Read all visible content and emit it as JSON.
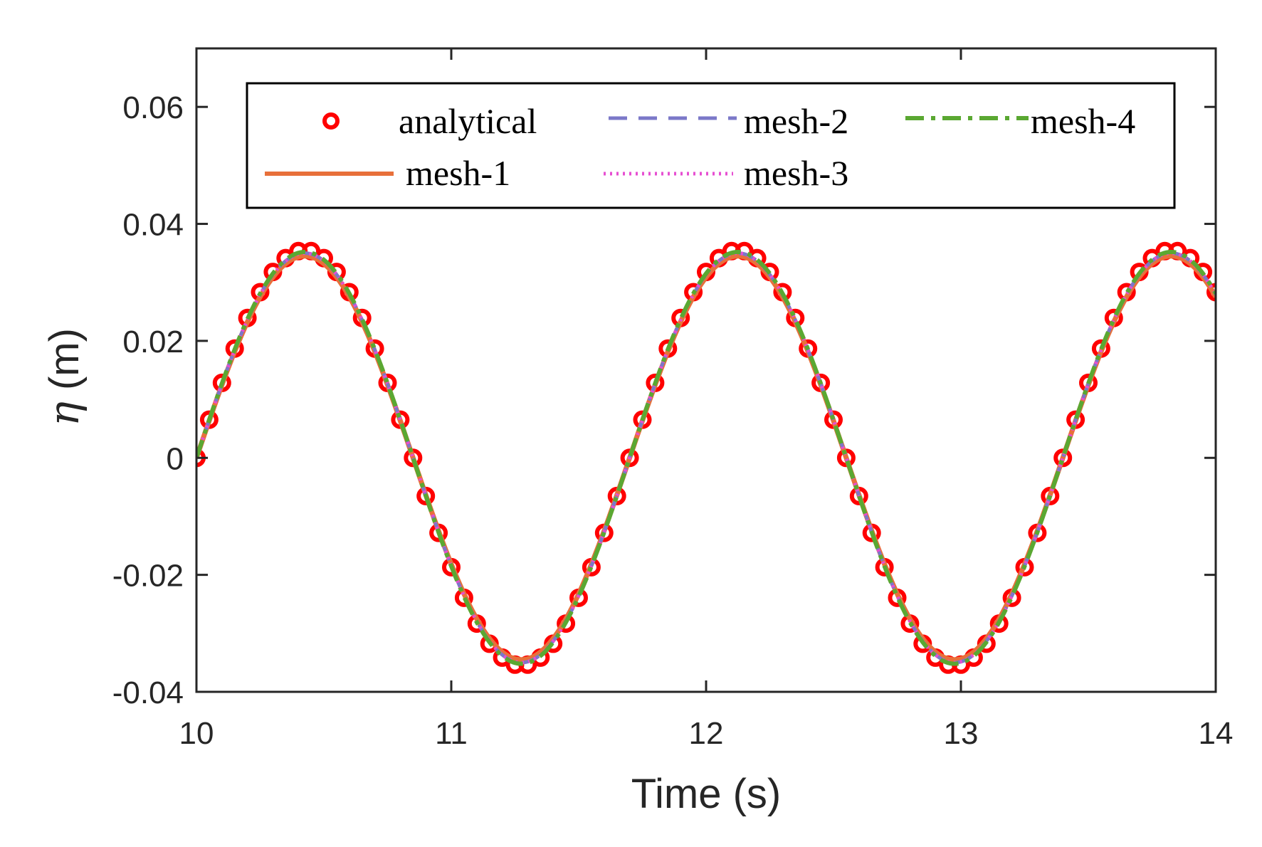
{
  "chart_data": {
    "type": "line",
    "xlabel": "Time (s)",
    "ylabel_symbol": "η",
    "ylabel_unit": " (m)",
    "xlim": [
      10,
      14
    ],
    "ylim": [
      -0.04,
      0.07
    ],
    "xticks": [
      10,
      11,
      12,
      13,
      14
    ],
    "xtick_labels": [
      "10",
      "11",
      "12",
      "13",
      "14"
    ],
    "yticks": [
      -0.04,
      -0.02,
      0,
      0.02,
      0.04,
      0.06
    ],
    "ytick_labels": [
      "-0.04",
      "-0.02",
      "0",
      "0.02",
      "0.04",
      "0.06"
    ],
    "grid": false,
    "legend_position": "top",
    "wave": {
      "amplitude": 0.035,
      "period": 1.7,
      "t0": 10
    },
    "series": [
      {
        "name": "analytical",
        "style": "circles",
        "color": "#ff0000",
        "amplitude": 0.0355,
        "t_start": 10,
        "t_step": 0.05,
        "count": 81
      },
      {
        "name": "mesh-1",
        "style": "solid",
        "color": "#e8703a",
        "amplitude": 0.0345
      },
      {
        "name": "mesh-2",
        "style": "dashed",
        "color": "#7b78c8",
        "amplitude": 0.035
      },
      {
        "name": "mesh-3",
        "style": "dotted",
        "color": "#e64fd2",
        "amplitude": 0.035
      },
      {
        "name": "mesh-4",
        "style": "dashdot",
        "color": "#5aa832",
        "amplitude": 0.0352
      }
    ],
    "legend": {
      "row1": [
        "analytical",
        "mesh-2",
        "mesh-4"
      ],
      "row2": [
        "mesh-1",
        "mesh-3"
      ]
    }
  }
}
